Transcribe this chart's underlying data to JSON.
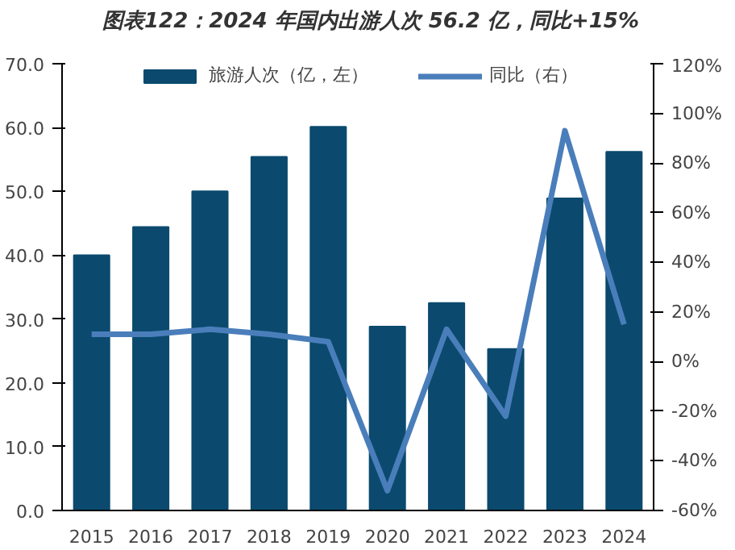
{
  "chart_data": {
    "type": "bar",
    "title": "图表122：2024 年国内出游人次 56.2 亿，同比+15%",
    "categories": [
      "2015",
      "2016",
      "2017",
      "2018",
      "2019",
      "2020",
      "2021",
      "2022",
      "2023",
      "2024"
    ],
    "series": [
      {
        "name": "旅游人次（亿，左）",
        "color": "#0b4a6e",
        "values": [
          40.0,
          44.4,
          50.0,
          55.4,
          60.1,
          28.8,
          32.5,
          25.3,
          48.9,
          56.2
        ]
      },
      {
        "name": "同比（右）",
        "color": "#4a7ebb",
        "type": "line",
        "axis": "y2",
        "values": [
          11,
          11,
          13,
          11,
          8,
          -52,
          13,
          -22,
          93,
          15
        ]
      }
    ],
    "ylim": [
      0,
      70
    ],
    "yticks": [
      {
        "value": 0,
        "label": "0.0"
      },
      {
        "value": 10,
        "label": "10.0"
      },
      {
        "value": 20,
        "label": "20.0"
      },
      {
        "value": 30,
        "label": "30.0"
      },
      {
        "value": 40,
        "label": "40.0"
      },
      {
        "value": 50,
        "label": "50.0"
      },
      {
        "value": 60,
        "label": "60.0"
      },
      {
        "value": 70,
        "label": "70.0"
      }
    ],
    "y2lim": [
      -60,
      120
    ],
    "y2ticks": [
      {
        "value": -60,
        "label": "-60%"
      },
      {
        "value": -40,
        "label": "-40%"
      },
      {
        "value": -20,
        "label": "-20%"
      },
      {
        "value": 0,
        "label": "0%"
      },
      {
        "value": 20,
        "label": "20%"
      },
      {
        "value": 40,
        "label": "40%"
      },
      {
        "value": 60,
        "label": "60%"
      },
      {
        "value": 80,
        "label": "80%"
      },
      {
        "value": 100,
        "label": "100%"
      },
      {
        "value": 120,
        "label": "120%"
      }
    ],
    "grid": false,
    "legend": "top"
  }
}
